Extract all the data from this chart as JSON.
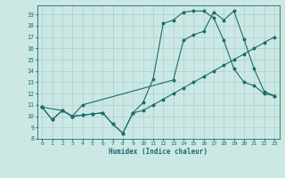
{
  "xlabel": "Humidex (Indice chaleur)",
  "bg_color": "#cce8e5",
  "line_color": "#1a6b6b",
  "grid_color": "#aacfcc",
  "xlim": [
    -0.5,
    23.5
  ],
  "ylim": [
    8,
    19.8
  ],
  "xticks": [
    0,
    1,
    2,
    3,
    4,
    5,
    6,
    7,
    8,
    9,
    10,
    11,
    12,
    13,
    14,
    15,
    16,
    17,
    18,
    19,
    20,
    21,
    22,
    23
  ],
  "yticks": [
    8,
    9,
    10,
    11,
    12,
    13,
    14,
    15,
    16,
    17,
    18,
    19
  ],
  "line1_x": [
    0,
    1,
    2,
    3,
    4,
    5,
    6,
    7,
    8,
    9,
    10,
    11,
    12,
    13,
    14,
    15,
    16,
    17,
    18,
    19,
    20,
    21,
    22,
    23
  ],
  "line1_y": [
    10.8,
    9.7,
    10.5,
    10.0,
    10.1,
    10.2,
    10.3,
    9.3,
    8.5,
    10.3,
    10.5,
    11.0,
    11.5,
    12.0,
    12.5,
    13.0,
    13.5,
    14.0,
    14.5,
    15.0,
    15.5,
    16.0,
    16.5,
    17.0
  ],
  "line2_x": [
    0,
    1,
    2,
    3,
    4,
    5,
    6,
    7,
    8,
    9,
    10,
    11,
    12,
    13,
    14,
    15,
    16,
    17,
    18,
    19,
    20,
    21,
    22,
    23
  ],
  "line2_y": [
    10.8,
    9.7,
    10.5,
    10.0,
    10.1,
    10.2,
    10.3,
    9.3,
    8.5,
    10.3,
    11.2,
    13.3,
    18.2,
    18.5,
    19.2,
    19.3,
    19.3,
    18.7,
    16.7,
    14.2,
    13.0,
    12.7,
    12.0,
    11.8
  ],
  "line3_x": [
    0,
    2,
    3,
    4,
    13,
    14,
    15,
    16,
    17,
    18,
    19,
    20,
    21,
    22,
    23
  ],
  "line3_y": [
    10.8,
    10.5,
    10.0,
    11.0,
    13.2,
    16.7,
    17.2,
    17.5,
    19.2,
    18.5,
    19.3,
    16.8,
    14.2,
    12.2,
    11.8
  ]
}
